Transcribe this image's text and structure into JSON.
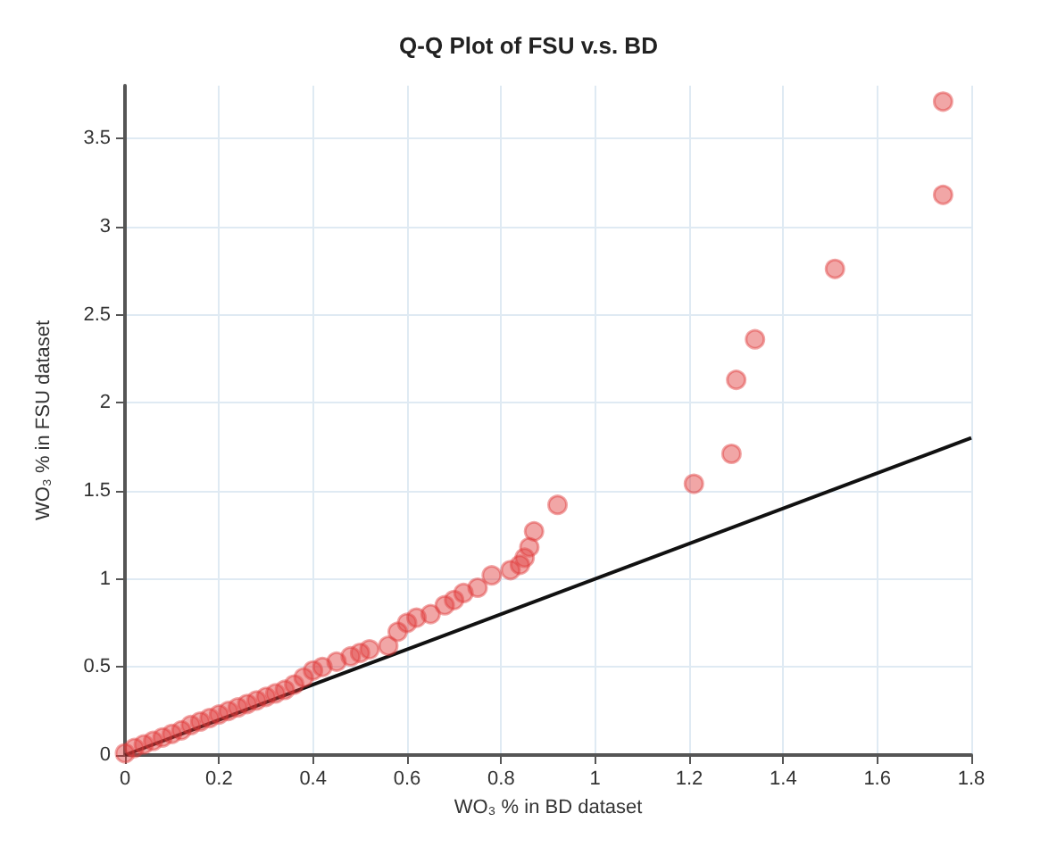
{
  "chart_data": {
    "type": "scatter",
    "title": "Q-Q Plot of FSU v.s. BD",
    "xlabel": "WO₃ % in BD dataset",
    "ylabel": "WO₃ % in FSU dataset",
    "xlim": [
      0,
      1.8
    ],
    "xticks": [
      0,
      0.2,
      0.4,
      0.6,
      0.8,
      1,
      1.2,
      1.4,
      1.6,
      1.8
    ],
    "ylim": [
      0,
      3.8
    ],
    "yticks": [
      0,
      0.5,
      1,
      1.5,
      2,
      2.5,
      3,
      3.5
    ],
    "grid": true,
    "marker": "circle",
    "series": [
      {
        "color": "#e0393a",
        "x": [
          0,
          0.02,
          0.04,
          0.06,
          0.08,
          0.1,
          0.12,
          0.14,
          0.16,
          0.18,
          0.2,
          0.22,
          0.24,
          0.26,
          0.28,
          0.3,
          0.32,
          0.34,
          0.36,
          0.38,
          0.4,
          0.42,
          0.45,
          0.48,
          0.5,
          0.52,
          0.56,
          0.58,
          0.6,
          0.62,
          0.65,
          0.68,
          0.7,
          0.72,
          0.75,
          0.78,
          0.82,
          0.84,
          0.85,
          0.86,
          0.87,
          0.92,
          1.21,
          1.29,
          1.3,
          1.34,
          1.51,
          1.74,
          1.74
        ],
        "values": [
          0.01,
          0.04,
          0.06,
          0.08,
          0.1,
          0.12,
          0.14,
          0.17,
          0.19,
          0.21,
          0.23,
          0.25,
          0.27,
          0.29,
          0.31,
          0.33,
          0.35,
          0.37,
          0.4,
          0.44,
          0.48,
          0.5,
          0.53,
          0.56,
          0.58,
          0.6,
          0.62,
          0.7,
          0.75,
          0.78,
          0.8,
          0.85,
          0.88,
          0.92,
          0.95,
          1.02,
          1.05,
          1.08,
          1.12,
          1.18,
          1.27,
          1.42,
          1.54,
          1.71,
          2.13,
          2.36,
          2.76,
          3.18,
          3.71
        ]
      },
      {
        "type": "line",
        "color": "#111111",
        "line_style": "solid",
        "marker": "none",
        "x": [
          0,
          1.8
        ],
        "values": [
          0,
          1.8
        ]
      }
    ]
  }
}
